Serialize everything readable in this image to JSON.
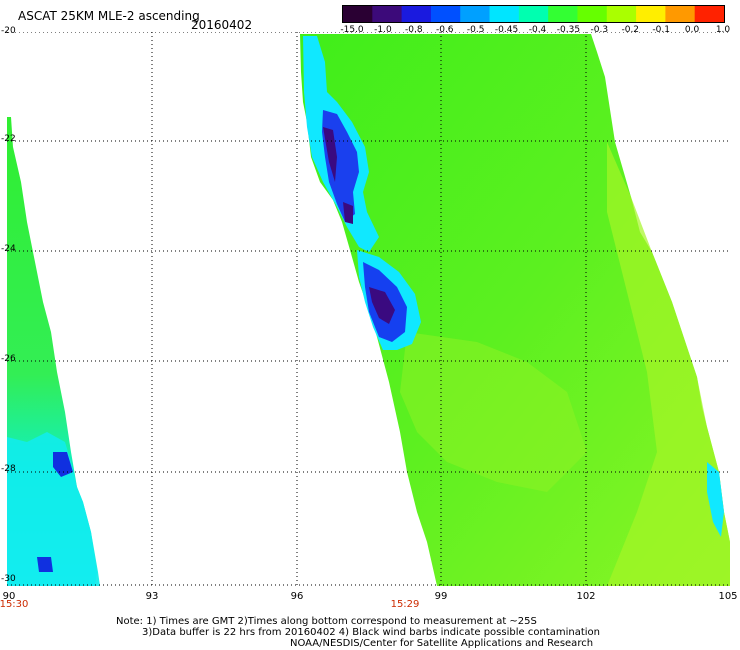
{
  "header": {
    "title": "ASCAT 25KM MLE-2 ascending",
    "date": "20160402"
  },
  "colorbar": {
    "labels": [
      "-15.0",
      "-1.0",
      "-0.8",
      "-0.6",
      "-0.5",
      "-0.45",
      "-0.4",
      "-0.35",
      "-0.3",
      "-0.2",
      "-0.1",
      "0.0",
      "1.0"
    ],
    "colors": [
      "#2a0033",
      "#3c0a7a",
      "#1a1adf",
      "#0050ff",
      "#00a0ff",
      "#00e5ff",
      "#00ffb0",
      "#33ff33",
      "#66ff00",
      "#aaff00",
      "#ffee00",
      "#ff9900",
      "#ff2200"
    ]
  },
  "map": {
    "lon_ticks": [
      "90",
      "93",
      "96",
      "99",
      "102",
      "105"
    ],
    "lat_ticks": [
      "-20",
      "-22",
      "-24",
      "-26",
      "-28",
      "-30"
    ],
    "lon_range": [
      90,
      105
    ],
    "lat_range": [
      -20,
      -30
    ],
    "pass_times": [
      "15:30",
      "15:29"
    ]
  },
  "notes": {
    "line1": "Note: 1) Times are GMT 2)Times along bottom correspond to measurement at ~25S",
    "line2": "3)Data buffer is 22 hrs from 20160402 4) Black wind barbs indicate possible contamination",
    "line3": "NOAA/NESDIS/Center for Satellite Applications and Research"
  },
  "colors": {
    "swath_main": "#55f014",
    "swath_light": "#99f522",
    "cyan": "#00e8ff",
    "blue": "#1030f0",
    "purple": "#3a0a80",
    "time_label": "#cc2a00"
  }
}
